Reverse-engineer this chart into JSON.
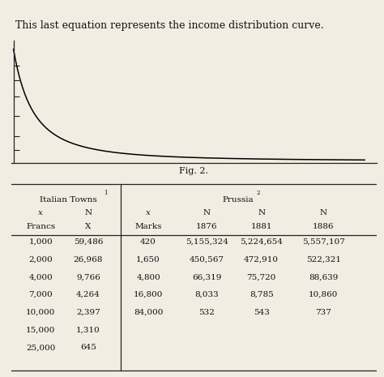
{
  "title_text": "This last equation represents the income distribution curve.",
  "fig_caption": "Fig. 2.",
  "background_color": "#f2ede3",
  "curve_color": "#000000",
  "line_color": "#222222",
  "text_color": "#111111",
  "table": {
    "italian_x_fmt": [
      "1,000",
      "2,000",
      "4,000",
      "7,000",
      "10,000",
      "15,000",
      "25,000"
    ],
    "italian_n_fmt": [
      "59,486",
      "26,968",
      "9,766",
      "4,264",
      "2,397",
      "1,310",
      "645"
    ],
    "prussia_x_fmt": [
      "420",
      "1,650",
      "4,800",
      "16,800",
      "84,000"
    ],
    "prussia_n1876_fmt": [
      "5,155,324",
      "450,567",
      "66,319",
      "8,033",
      "532"
    ],
    "prussia_n1881_fmt": [
      "5,224,654",
      "472,910",
      "75,720",
      "8,785",
      "543"
    ],
    "prussia_n1886_fmt": [
      "5,557,107",
      "522,321",
      "88,639",
      "10,860",
      "737"
    ]
  }
}
